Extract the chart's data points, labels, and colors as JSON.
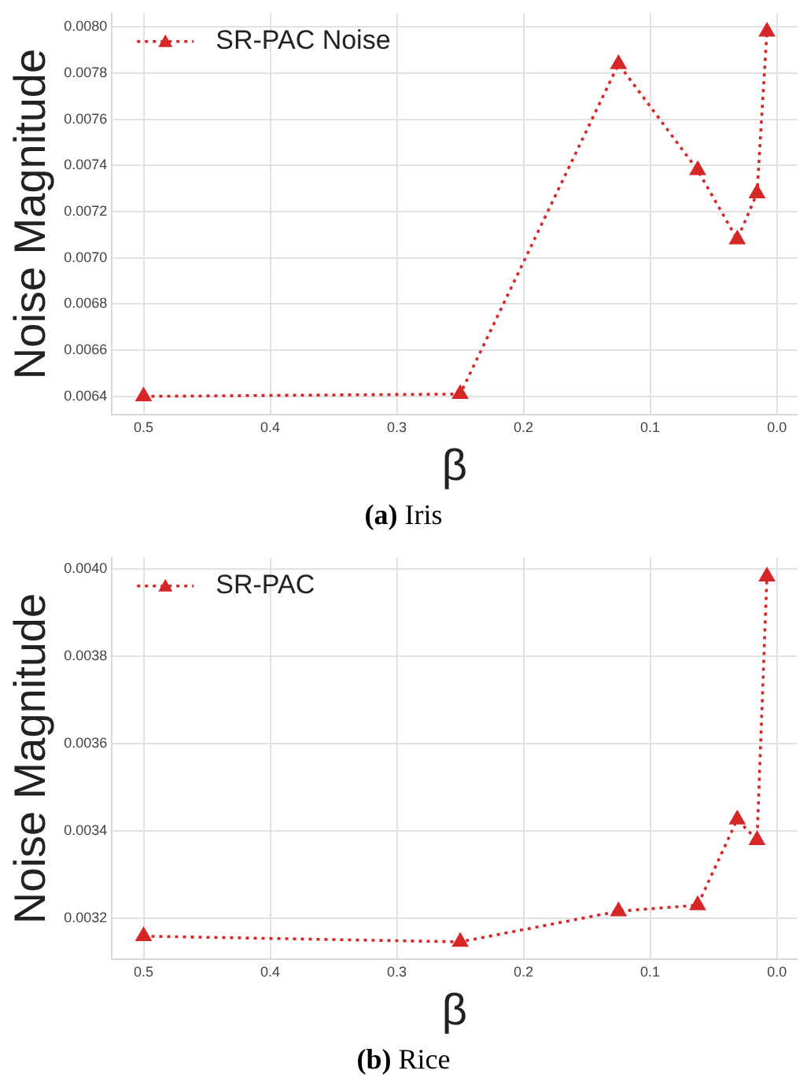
{
  "chart_data": [
    {
      "type": "line",
      "title": "(a) Iris",
      "xlabel": "β",
      "ylabel": "Noise Magnitude",
      "x": [
        0.5,
        0.25,
        0.125,
        0.0625,
        0.03125,
        0.015625,
        0.0078125
      ],
      "series": [
        {
          "name": "SR-PAC Noise",
          "color": "#d62728",
          "values": [
            0.0064,
            0.00641,
            0.00784,
            0.00738,
            0.00708,
            0.00728,
            0.00798
          ]
        }
      ],
      "xlim": [
        0.525,
        -0.016
      ],
      "xticks": [
        0.5,
        0.4,
        0.3,
        0.2,
        0.1,
        {
          "value": 0,
          "label": "0.0"
        }
      ],
      "ylim": [
        0.00632,
        0.00806
      ],
      "yticks": [
        0.0064,
        0.0066,
        0.0068,
        {
          "value": 0.007,
          "label": "0.0070"
        },
        0.0072,
        0.0074,
        0.0076,
        0.0078,
        {
          "value": 0.008,
          "label": "0.0080"
        }
      ],
      "grid": true,
      "legend": "top left",
      "marker": "triangle",
      "line_style": "dotted"
    },
    {
      "type": "line",
      "title": "(b) Rice",
      "xlabel": "β",
      "ylabel": "Noise Magnitude",
      "x": [
        0.5,
        0.25,
        0.125,
        0.0625,
        0.03125,
        0.015625,
        0.0078125
      ],
      "series": [
        {
          "name": "SR-PAC",
          "color": "#d62728",
          "values": [
            0.003159,
            0.003146,
            0.003216,
            0.00323,
            0.003426,
            0.003379,
            0.003982
          ]
        }
      ],
      "xlim": [
        0.525,
        -0.016
      ],
      "xticks": [
        0.5,
        0.4,
        0.3,
        0.2,
        0.1,
        {
          "value": 0,
          "label": "0.0"
        }
      ],
      "ylim": [
        0.003106,
        0.004025
      ],
      "yticks": [
        0.0032,
        0.0034,
        0.0036,
        0.0038,
        {
          "value": 0.004,
          "label": "0.0040"
        }
      ],
      "grid": true,
      "legend": "top left",
      "marker": "triangle",
      "line_style": "dotted"
    }
  ]
}
